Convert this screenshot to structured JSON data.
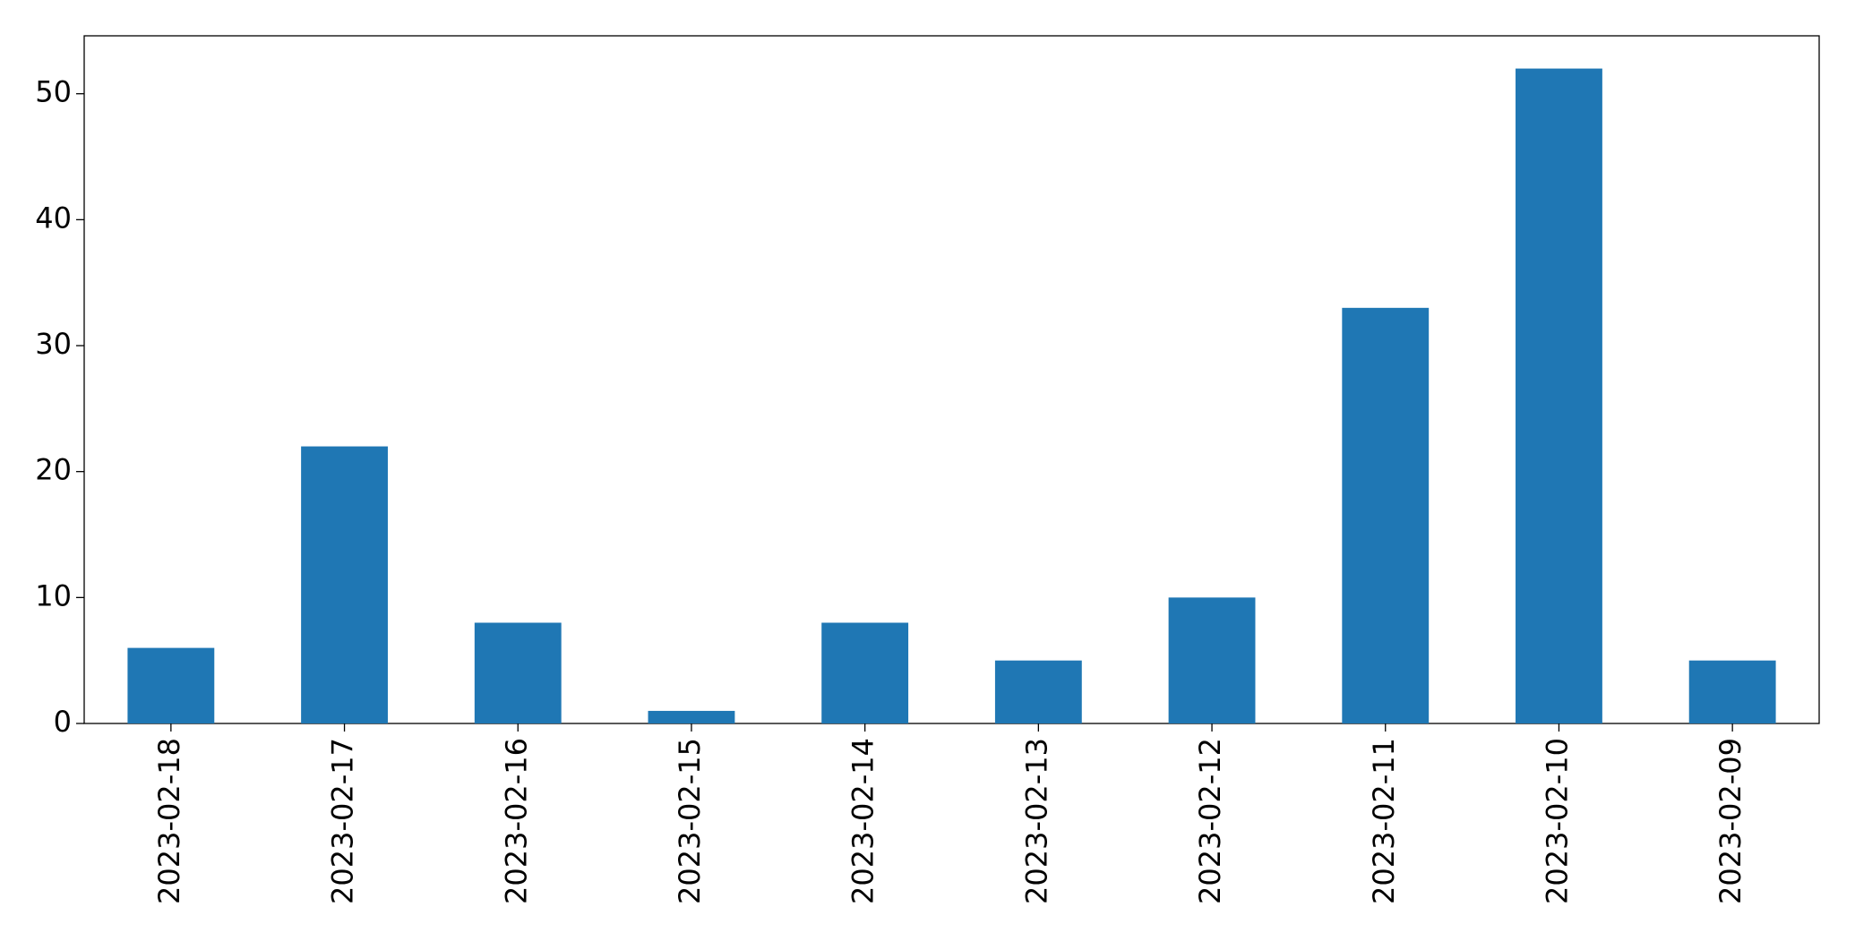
{
  "chart_data": {
    "type": "bar",
    "categories": [
      "2023-02-18",
      "2023-02-17",
      "2023-02-16",
      "2023-02-15",
      "2023-02-14",
      "2023-02-13",
      "2023-02-12",
      "2023-02-11",
      "2023-02-10",
      "2023-02-09"
    ],
    "values": [
      6,
      22,
      8,
      1,
      8,
      5,
      10,
      33,
      52,
      5
    ],
    "color": "#1f77b4",
    "ylim": [
      0,
      54.6
    ],
    "yticks": [
      0,
      10,
      20,
      30,
      40,
      50
    ],
    "grid": false
  }
}
